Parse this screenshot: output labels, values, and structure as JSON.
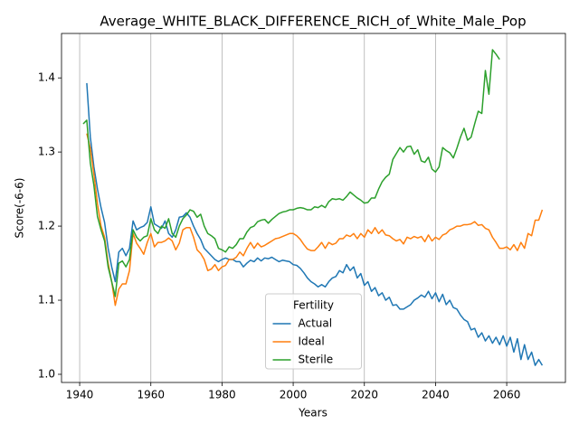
{
  "chart_data": {
    "type": "line",
    "title": "Average_WHITE_BLACK_DIFFERENCE_RICH_of_White_Male_Pop",
    "x_label": "Years",
    "y_label": "Score(-6-6)",
    "legend_title": "Fertility",
    "legend": "lower center",
    "grid": "x",
    "xlim": [
      1934.9,
      2076.5
    ],
    "ylim": [
      0.989,
      1.46
    ],
    "xticks": [
      1940,
      1960,
      1980,
      2000,
      2020,
      2040,
      2060
    ],
    "yticks": [
      {
        "value": 1,
        "label": "1.0"
      },
      1.1,
      1.2,
      1.3,
      1.4
    ],
    "x": [
      1941,
      1942,
      1943,
      1944,
      1945,
      1946,
      1947,
      1948,
      1949,
      1950,
      1951,
      1952,
      1953,
      1954,
      1955,
      1956,
      1957,
      1958,
      1959,
      1960,
      1961,
      1962,
      1963,
      1964,
      1965,
      1966,
      1967,
      1968,
      1969,
      1970,
      1971,
      1972,
      1973,
      1974,
      1975,
      1976,
      1977,
      1978,
      1979,
      1980,
      1981,
      1982,
      1983,
      1984,
      1985,
      1986,
      1987,
      1988,
      1989,
      1990,
      1991,
      1992,
      1993,
      1994,
      1995,
      1996,
      1997,
      1998,
      1999,
      2000,
      2001,
      2002,
      2003,
      2004,
      2005,
      2006,
      2007,
      2008,
      2009,
      2010,
      2011,
      2012,
      2013,
      2014,
      2015,
      2016,
      2017,
      2018,
      2019,
      2020,
      2021,
      2022,
      2023,
      2024,
      2025,
      2026,
      2027,
      2028,
      2029,
      2030,
      2031,
      2032,
      2033,
      2034,
      2035,
      2036,
      2037,
      2038,
      2039,
      2040,
      2041,
      2042,
      2043,
      2044,
      2045,
      2046,
      2047,
      2048,
      2049,
      2050,
      2051,
      2052,
      2053,
      2054,
      2055,
      2056,
      2057,
      2058,
      2059,
      2060,
      2061,
      2062,
      2063,
      2064,
      2065,
      2066,
      2067,
      2068,
      2069,
      2070
    ],
    "series": [
      {
        "name": "Actual",
        "color": "#1f77b4",
        "values": [
          null,
          1.393,
          1.32,
          1.28,
          1.25,
          1.225,
          1.205,
          1.17,
          1.145,
          1.125,
          1.165,
          1.17,
          1.16,
          1.17,
          1.207,
          1.195,
          1.198,
          1.2,
          1.205,
          1.226,
          1.203,
          1.2,
          1.197,
          1.207,
          1.19,
          1.185,
          1.195,
          1.212,
          1.213,
          1.218,
          1.212,
          1.2,
          1.19,
          1.182,
          1.17,
          1.165,
          1.16,
          1.155,
          1.152,
          1.155,
          1.157,
          1.155,
          1.155,
          1.152,
          1.152,
          1.145,
          1.15,
          1.154,
          1.152,
          1.157,
          1.153,
          1.157,
          1.156,
          1.158,
          1.155,
          1.152,
          1.154,
          1.153,
          1.152,
          1.148,
          1.147,
          1.143,
          1.137,
          1.13,
          1.125,
          1.122,
          1.118,
          1.121,
          1.118,
          1.125,
          1.13,
          1.132,
          1.14,
          1.137,
          1.148,
          1.14,
          1.145,
          1.13,
          1.136,
          1.12,
          1.125,
          1.112,
          1.117,
          1.106,
          1.11,
          1.1,
          1.104,
          1.093,
          1.094,
          1.088,
          1.088,
          1.091,
          1.094,
          1.1,
          1.103,
          1.107,
          1.104,
          1.112,
          1.102,
          1.11,
          1.098,
          1.108,
          1.094,
          1.1,
          1.09,
          1.088,
          1.08,
          1.074,
          1.071,
          1.06,
          1.062,
          1.05,
          1.056,
          1.045,
          1.052,
          1.042,
          1.05,
          1.04,
          1.052,
          1.038,
          1.05,
          1.03,
          1.048,
          1.02,
          1.04,
          1.02,
          1.03,
          1.012,
          1.02,
          1.012
        ]
      },
      {
        "name": "Ideal",
        "color": "#ff7f0e",
        "values": [
          null,
          1.325,
          1.305,
          1.27,
          1.23,
          1.2,
          1.185,
          1.15,
          1.125,
          1.093,
          1.115,
          1.122,
          1.122,
          1.14,
          1.19,
          1.177,
          1.17,
          1.162,
          1.178,
          1.19,
          1.172,
          1.178,
          1.178,
          1.18,
          1.184,
          1.18,
          1.168,
          1.177,
          1.195,
          1.198,
          1.198,
          1.185,
          1.168,
          1.163,
          1.155,
          1.14,
          1.142,
          1.148,
          1.14,
          1.145,
          1.147,
          1.155,
          1.155,
          1.158,
          1.165,
          1.16,
          1.17,
          1.178,
          1.17,
          1.177,
          1.172,
          1.174,
          1.177,
          1.18,
          1.183,
          1.184,
          1.186,
          1.188,
          1.19,
          1.19,
          1.187,
          1.182,
          1.175,
          1.169,
          1.167,
          1.167,
          1.172,
          1.178,
          1.17,
          1.178,
          1.175,
          1.177,
          1.183,
          1.183,
          1.188,
          1.186,
          1.19,
          1.183,
          1.19,
          1.185,
          1.195,
          1.19,
          1.198,
          1.19,
          1.195,
          1.188,
          1.187,
          1.183,
          1.18,
          1.182,
          1.176,
          1.185,
          1.183,
          1.186,
          1.184,
          1.186,
          1.179,
          1.188,
          1.18,
          1.185,
          1.182,
          1.188,
          1.19,
          1.195,
          1.197,
          1.2,
          1.2,
          1.202,
          1.202,
          1.203,
          1.206,
          1.201,
          1.202,
          1.197,
          1.195,
          1.185,
          1.178,
          1.17,
          1.17,
          1.172,
          1.168,
          1.175,
          1.167,
          1.178,
          1.17,
          1.19,
          1.187,
          1.208,
          1.208,
          1.222
        ]
      },
      {
        "name": "Sterile",
        "color": "#2ca02c",
        "values": [
          1.338,
          1.343,
          1.285,
          1.255,
          1.213,
          1.195,
          1.18,
          1.145,
          1.125,
          1.105,
          1.15,
          1.153,
          1.145,
          1.155,
          1.195,
          1.185,
          1.18,
          1.185,
          1.187,
          1.21,
          1.195,
          1.19,
          1.2,
          1.197,
          1.21,
          1.19,
          1.185,
          1.2,
          1.21,
          1.215,
          1.222,
          1.22,
          1.212,
          1.216,
          1.2,
          1.19,
          1.187,
          1.183,
          1.17,
          1.168,
          1.165,
          1.172,
          1.17,
          1.175,
          1.183,
          1.183,
          1.192,
          1.198,
          1.2,
          1.206,
          1.208,
          1.209,
          1.204,
          1.209,
          1.213,
          1.217,
          1.219,
          1.22,
          1.222,
          1.222,
          1.224,
          1.225,
          1.224,
          1.222,
          1.222,
          1.226,
          1.225,
          1.228,
          1.225,
          1.233,
          1.237,
          1.236,
          1.237,
          1.235,
          1.24,
          1.246,
          1.242,
          1.238,
          1.235,
          1.231,
          1.232,
          1.238,
          1.238,
          1.25,
          1.26,
          1.266,
          1.27,
          1.29,
          1.298,
          1.306,
          1.3,
          1.307,
          1.308,
          1.297,
          1.303,
          1.288,
          1.286,
          1.293,
          1.277,
          1.273,
          1.28,
          1.306,
          1.302,
          1.299,
          1.292,
          1.305,
          1.32,
          1.332,
          1.316,
          1.32,
          1.338,
          1.355,
          1.352,
          1.41,
          1.378,
          1.438,
          1.432,
          1.425,
          null,
          null,
          null,
          null,
          null,
          null,
          null,
          null,
          null,
          null,
          null,
          null
        ]
      }
    ]
  }
}
